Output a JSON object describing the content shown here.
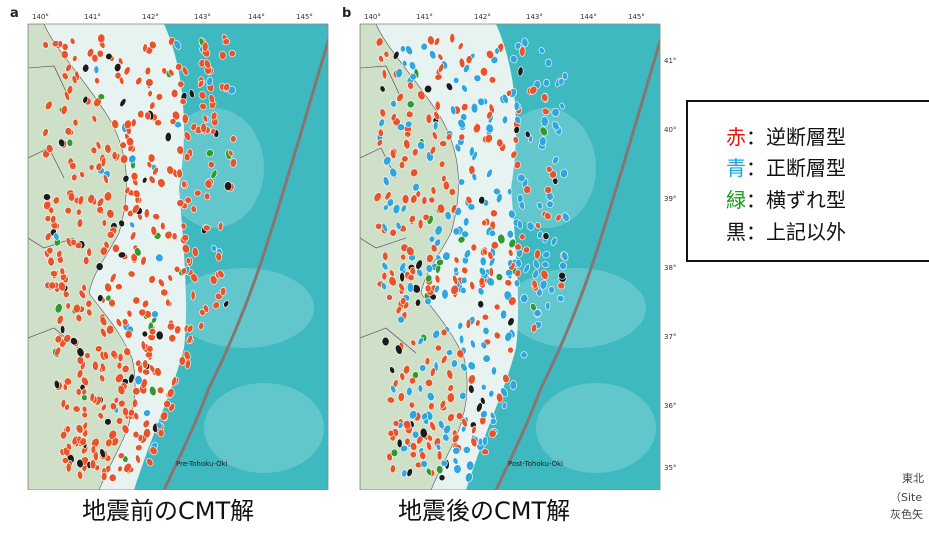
{
  "panels": [
    {
      "letter": "a",
      "lon_ticks": [
        "140°",
        "141°",
        "142°",
        "143°",
        "144°",
        "145°"
      ],
      "lat_ticks": [],
      "map_label": "Pre-Tohoku-Oki",
      "caption": "地震前のCMT解"
    },
    {
      "letter": "b",
      "lon_ticks": [
        "140°",
        "141°",
        "142°",
        "143°",
        "144°",
        "145°"
      ],
      "lat_ticks": [
        "41°",
        "40°",
        "39°",
        "38°",
        "37°",
        "36°",
        "35°"
      ],
      "map_label": "Post-Tohoku-Oki",
      "caption": "地震後のCMT解"
    }
  ],
  "legend": [
    {
      "color_word": "赤",
      "color": "#e8160c",
      "separator": "：",
      "text": "逆断層型"
    },
    {
      "color_word": "青",
      "color": "#1ea2dc",
      "separator": "：",
      "text": "正断層型"
    },
    {
      "color_word": "緑",
      "color": "#1a9a1a",
      "separator": "：",
      "text": "横ずれ型"
    },
    {
      "color_word": "黒",
      "color": "#111111",
      "separator": "：",
      "text": "上記以外"
    }
  ],
  "cut_off_text": [
    "東北",
    "（Site",
    "灰色矢"
  ],
  "colors": {
    "sea": "#3fb9c0",
    "land": "#d6e5d0",
    "trench": "#8a7470",
    "reverse": "#e8542a",
    "normal": "#2fa6dd",
    "strike_slip": "#2f9a2f",
    "other": "#1b1b1b"
  }
}
